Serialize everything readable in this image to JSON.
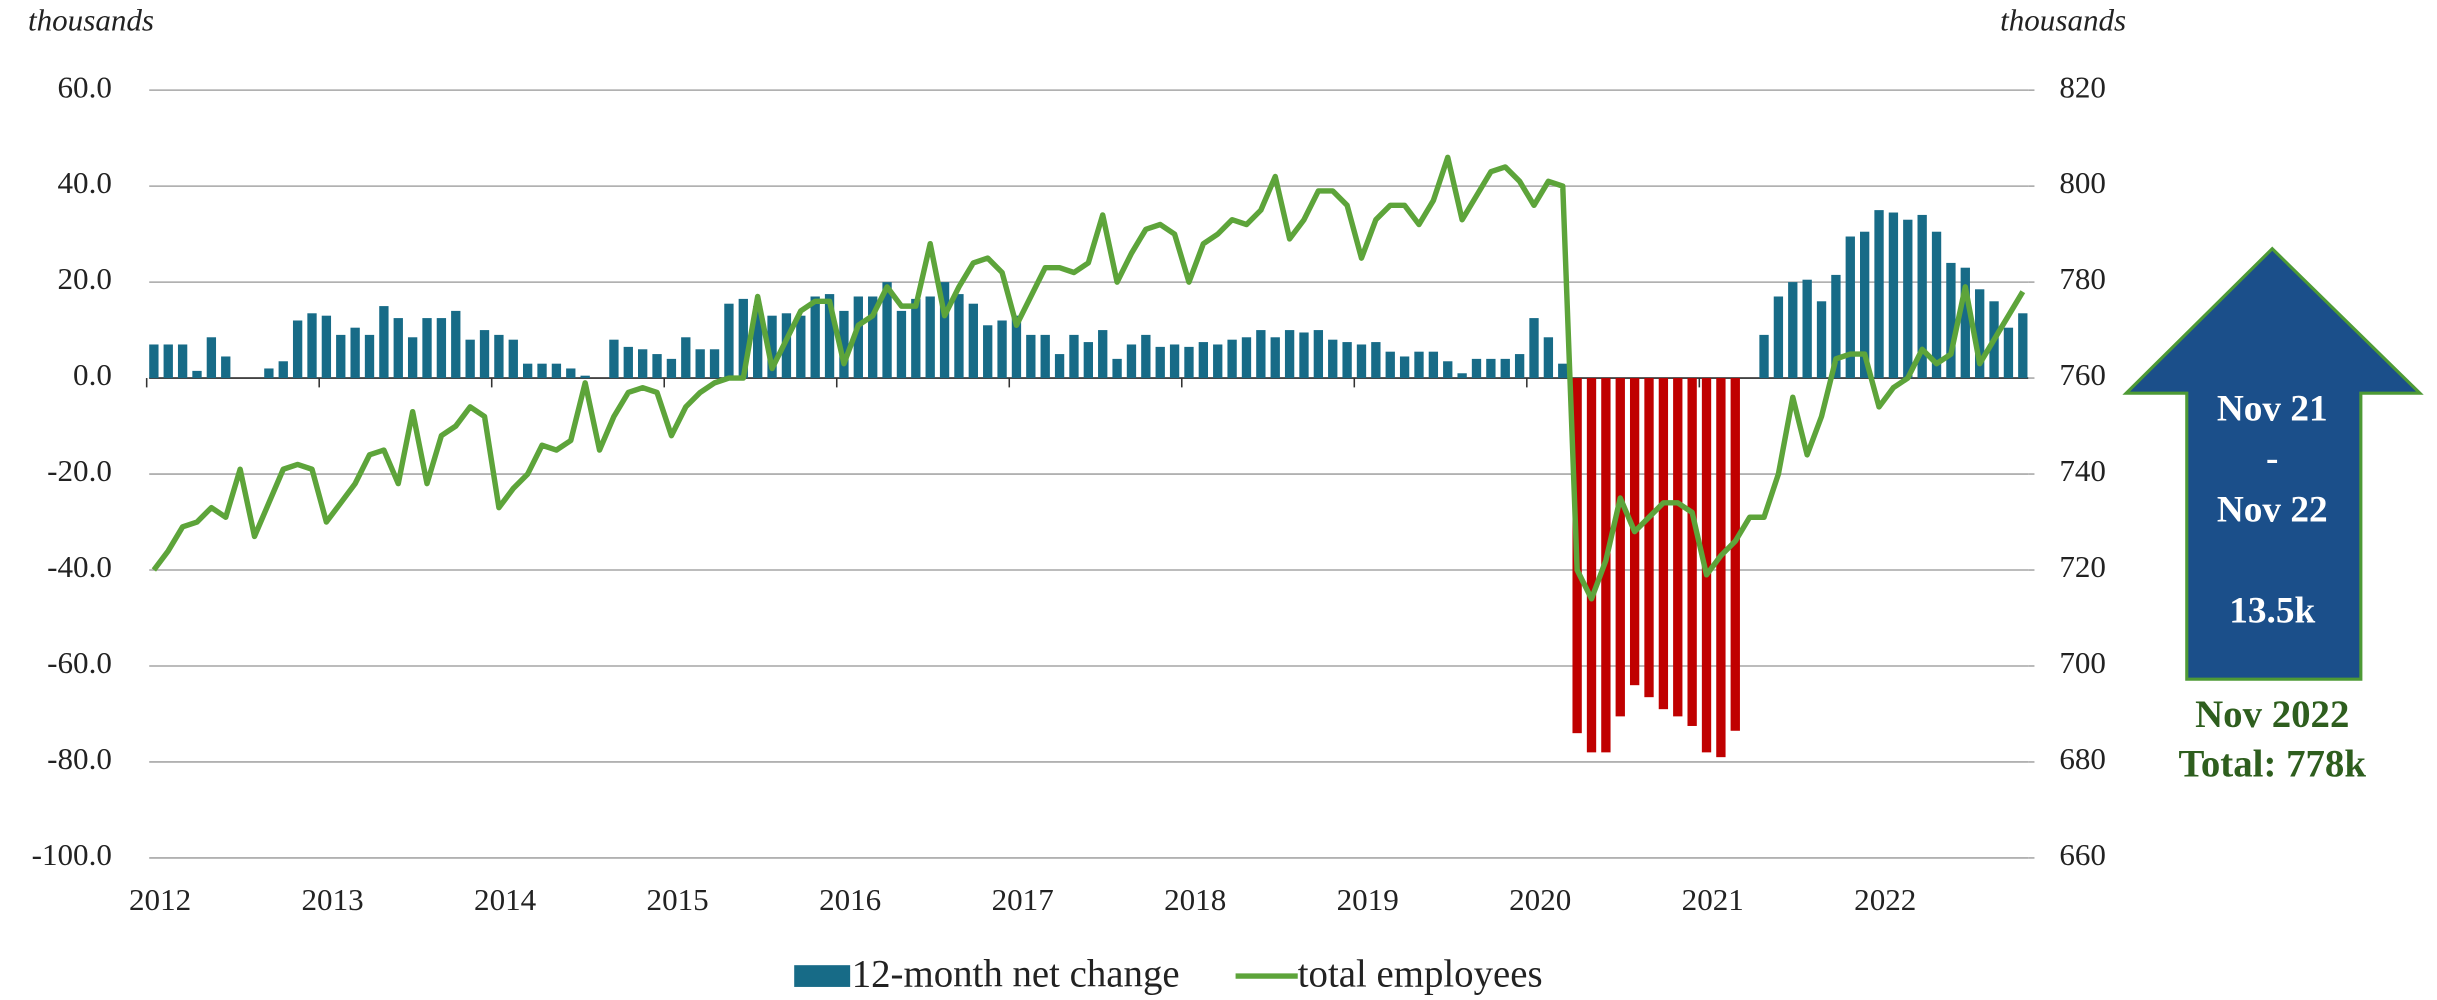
{
  "chart_data": {
    "type": "bar-line",
    "y_unit": "thousands",
    "y2_unit": "thousands",
    "categories": [
      "2012",
      null,
      null,
      null,
      null,
      null,
      null,
      null,
      null,
      null,
      null,
      null,
      "2013",
      null,
      null,
      null,
      null,
      null,
      null,
      null,
      null,
      null,
      null,
      null,
      "2014",
      null,
      null,
      null,
      null,
      null,
      null,
      null,
      null,
      null,
      null,
      null,
      "2015",
      null,
      null,
      null,
      null,
      null,
      null,
      null,
      null,
      null,
      null,
      null,
      "2016",
      null,
      null,
      null,
      null,
      null,
      null,
      null,
      null,
      null,
      null,
      null,
      "2017",
      null,
      null,
      null,
      null,
      null,
      null,
      null,
      null,
      null,
      null,
      null,
      "2018",
      null,
      null,
      null,
      null,
      null,
      null,
      null,
      null,
      null,
      null,
      null,
      "2019",
      null,
      null,
      null,
      null,
      null,
      null,
      null,
      null,
      null,
      null,
      null,
      "2020",
      null,
      null,
      null,
      null,
      null,
      null,
      null,
      null,
      null,
      null,
      null,
      "2021",
      null,
      null,
      null,
      null,
      null,
      null,
      null,
      null,
      null,
      null,
      null,
      "2022",
      null,
      null,
      null,
      null,
      null,
      null,
      null,
      null,
      null,
      null
    ],
    "ylim": [
      -100,
      60
    ],
    "yticks": [
      {
        "value": -100,
        "label": "-100.0"
      },
      {
        "value": -80,
        "label": "-80.0"
      },
      {
        "value": -60,
        "label": "-60.0"
      },
      {
        "value": -40,
        "label": "-40.0"
      },
      {
        "value": -20,
        "label": "-20.0"
      },
      {
        "value": 0,
        "label": "0.0"
      },
      {
        "value": 20,
        "label": "20.0"
      },
      {
        "value": 40,
        "label": "40.0"
      },
      {
        "value": 60,
        "label": "60.0"
      }
    ],
    "y2lim": [
      660,
      820
    ],
    "y2ticks": [
      660,
      680,
      700,
      720,
      740,
      760,
      780,
      800,
      820
    ],
    "grid": true,
    "series": [
      {
        "name": "12-month net change",
        "type": "bar",
        "color": "#176b87",
        "negative_color": "#c00000",
        "values": [
          7,
          7,
          7,
          1.5,
          8.5,
          4.5,
          0,
          0,
          2,
          3.5,
          12,
          13.5,
          13,
          9,
          10.5,
          9,
          15,
          12.5,
          8.5,
          12.5,
          12.5,
          14,
          8,
          10,
          9,
          8,
          3,
          3,
          3,
          2,
          0.5,
          0,
          8,
          6.5,
          6,
          5,
          4,
          8.5,
          6,
          6,
          15.5,
          16.5,
          15,
          13,
          13.5,
          13,
          17,
          17.5,
          14,
          17,
          17,
          20,
          14,
          16.5,
          17,
          20,
          17.5,
          15.5,
          11,
          12,
          13,
          9,
          9,
          5,
          9,
          7.5,
          10,
          4,
          7,
          9,
          6.5,
          7,
          6.5,
          7.5,
          7,
          8,
          8.5,
          10,
          8.5,
          10,
          9.5,
          10,
          8,
          7.5,
          7,
          7.5,
          5.5,
          4.5,
          5.5,
          5.5,
          3.5,
          1,
          4,
          4,
          4,
          5,
          12.5,
          8.5,
          3,
          -74,
          -78,
          -78,
          -70.5,
          -64,
          -66.5,
          -69,
          -70.5,
          -72.5,
          -78,
          -79,
          -73.5,
          0,
          9,
          17,
          20,
          20.5,
          16,
          21.5,
          29.5,
          30.5,
          35,
          34.5,
          33,
          34,
          30.5,
          24,
          23,
          18.5,
          16,
          10.5,
          13.5
        ]
      },
      {
        "name": "total employees",
        "type": "line",
        "axis": "y2",
        "color": "#5da43a",
        "values": [
          720,
          724,
          729,
          730,
          733,
          731,
          741,
          727,
          734,
          741,
          742,
          741,
          730,
          734,
          738,
          744,
          745,
          738,
          753,
          738,
          748,
          750,
          754,
          752,
          733,
          737,
          740,
          746,
          745,
          747,
          759,
          745,
          752,
          757,
          758,
          757,
          748,
          754,
          757,
          759,
          760,
          760,
          777,
          762,
          768,
          774,
          776,
          776,
          763,
          771,
          773,
          779,
          775,
          775,
          788,
          773,
          779,
          784,
          785,
          782,
          771,
          777,
          783,
          783,
          782,
          784,
          794,
          780,
          786,
          791,
          792,
          790,
          780,
          788,
          790,
          793,
          792,
          795,
          802,
          789,
          793,
          799,
          799,
          796,
          785,
          793,
          796,
          796,
          792,
          797,
          806,
          793,
          798,
          803,
          804,
          801,
          796,
          801,
          800,
          720,
          714,
          722,
          735,
          728,
          731,
          734,
          734,
          732,
          719,
          723,
          726,
          731,
          731,
          740,
          756,
          744,
          752,
          764,
          765,
          765,
          754,
          758,
          760,
          766,
          763,
          765,
          779,
          763,
          768,
          773,
          778
        ]
      }
    ],
    "annotation": {
      "arrow_lines": [
        "Nov 21",
        "-",
        "Nov 22",
        "13.5k"
      ],
      "total_lines": [
        "Nov 2022",
        "Total: 778k"
      ]
    }
  }
}
